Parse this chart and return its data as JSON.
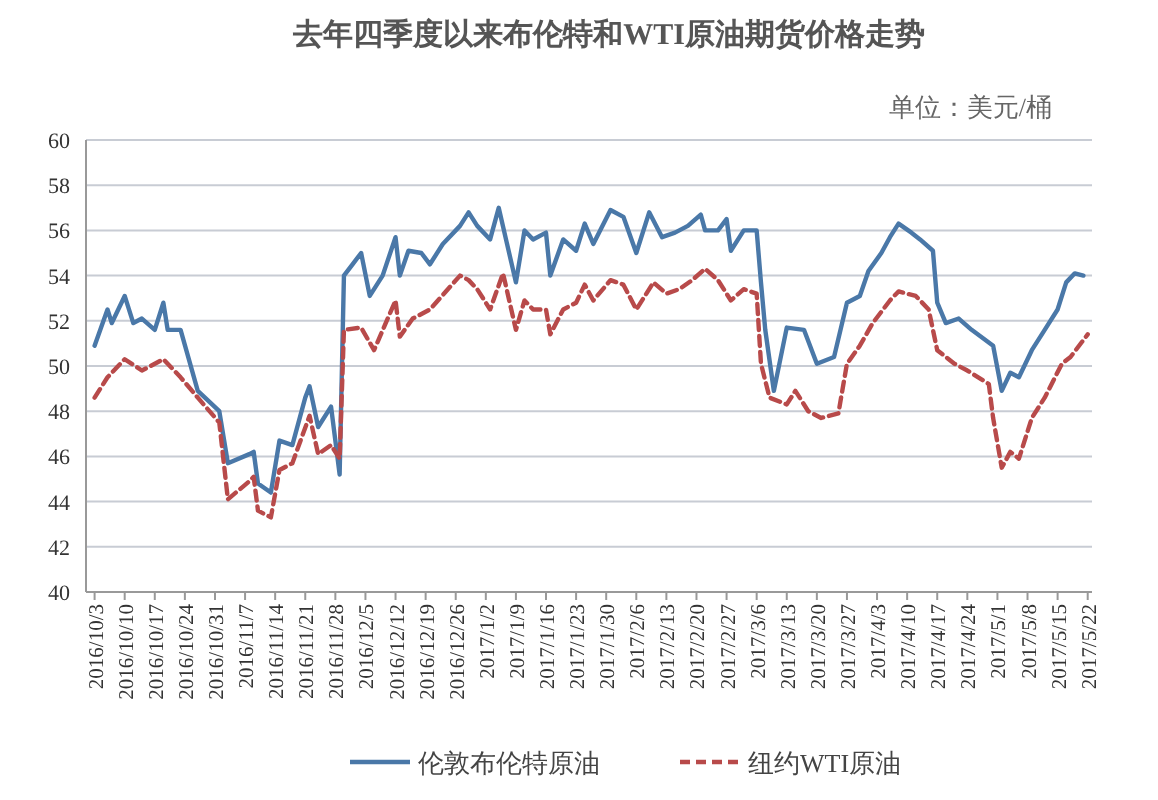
{
  "chart_data": {
    "type": "line",
    "title": "去年四季度以来布伦特和WTI原油期货价格走势",
    "annotations": [
      "单位：美元/桶"
    ],
    "xlim": [
      "2016-10-01",
      "2017-05-23"
    ],
    "ylim": [
      40,
      60
    ],
    "yticks": [
      40,
      42,
      44,
      46,
      48,
      50,
      52,
      54,
      56,
      58,
      60
    ],
    "xticks": [
      {
        "value": "2016-10-03",
        "label": "2016/10/3"
      },
      {
        "value": "2016-10-10",
        "label": "2016/10/10"
      },
      {
        "value": "2016-10-17",
        "label": "2016/10/17"
      },
      {
        "value": "2016-10-24",
        "label": "2016/10/24"
      },
      {
        "value": "2016-10-31",
        "label": "2016/10/31"
      },
      {
        "value": "2016-11-07",
        "label": "2016/11/7"
      },
      {
        "value": "2016-11-14",
        "label": "2016/11/14"
      },
      {
        "value": "2016-11-21",
        "label": "2016/11/21"
      },
      {
        "value": "2016-11-28",
        "label": "2016/11/28"
      },
      {
        "value": "2016-12-05",
        "label": "2016/12/5"
      },
      {
        "value": "2016-12-12",
        "label": "2016/12/12"
      },
      {
        "value": "2016-12-19",
        "label": "2016/12/19"
      },
      {
        "value": "2016-12-26",
        "label": "2016/12/26"
      },
      {
        "value": "2017-01-02",
        "label": "2017/1/2"
      },
      {
        "value": "2017-01-09",
        "label": "2017/1/9"
      },
      {
        "value": "2017-01-16",
        "label": "2017/1/16"
      },
      {
        "value": "2017-01-23",
        "label": "2017/1/23"
      },
      {
        "value": "2017-01-30",
        "label": "2017/1/30"
      },
      {
        "value": "2017-02-06",
        "label": "2017/2/6"
      },
      {
        "value": "2017-02-13",
        "label": "2017/2/13"
      },
      {
        "value": "2017-02-20",
        "label": "2017/2/20"
      },
      {
        "value": "2017-02-27",
        "label": "2017/2/27"
      },
      {
        "value": "2017-03-06",
        "label": "2017/3/6"
      },
      {
        "value": "2017-03-13",
        "label": "2017/3/13"
      },
      {
        "value": "2017-03-20",
        "label": "2017/3/20"
      },
      {
        "value": "2017-03-27",
        "label": "2017/3/27"
      },
      {
        "value": "2017-04-03",
        "label": "2017/4/3"
      },
      {
        "value": "2017-04-10",
        "label": "2017/4/10"
      },
      {
        "value": "2017-04-17",
        "label": "2017/4/17"
      },
      {
        "value": "2017-04-24",
        "label": "2017/4/24"
      },
      {
        "value": "2017-05-01",
        "label": "2017/5/1"
      },
      {
        "value": "2017-05-08",
        "label": "2017/5/8"
      },
      {
        "value": "2017-05-15",
        "label": "2017/5/15"
      },
      {
        "value": "2017-05-22",
        "label": "2017/5/22"
      }
    ],
    "grid": "y",
    "legend": "bottom",
    "marker": "none",
    "series": [
      {
        "name": "伦敦布伦特原油",
        "color": "#4a78a8",
        "line_style": "solid",
        "x": [
          "2016-10-03",
          "2016-10-06",
          "2016-10-07",
          "2016-10-10",
          "2016-10-12",
          "2016-10-14",
          "2016-10-17",
          "2016-10-19",
          "2016-10-20",
          "2016-10-23",
          "2016-10-27",
          "2016-11-01",
          "2016-11-03",
          "2016-11-08",
          "2016-11-09",
          "2016-11-10",
          "2016-11-13",
          "2016-11-15",
          "2016-11-18",
          "2016-11-21",
          "2016-11-22",
          "2016-11-24",
          "2016-11-27",
          "2016-11-29",
          "2016-11-30",
          "2016-12-02",
          "2016-12-04",
          "2016-12-06",
          "2016-12-09",
          "2016-12-12",
          "2016-12-13",
          "2016-12-15",
          "2016-12-18",
          "2016-12-20",
          "2016-12-23",
          "2016-12-27",
          "2016-12-29",
          "2016-12-31",
          "2017-01-03",
          "2017-01-05",
          "2017-01-09",
          "2017-01-11",
          "2017-01-13",
          "2017-01-16",
          "2017-01-17",
          "2017-01-20",
          "2017-01-23",
          "2017-01-25",
          "2017-01-27",
          "2017-01-31",
          "2017-02-03",
          "2017-02-06",
          "2017-02-09",
          "2017-02-12",
          "2017-02-15",
          "2017-02-18",
          "2017-02-21",
          "2017-02-22",
          "2017-02-25",
          "2017-02-27",
          "2017-02-28",
          "2017-03-03",
          "2017-03-06",
          "2017-03-07",
          "2017-03-08",
          "2017-03-10",
          "2017-03-13",
          "2017-03-17",
          "2017-03-20",
          "2017-03-24",
          "2017-03-27",
          "2017-03-30",
          "2017-04-01",
          "2017-04-04",
          "2017-04-06",
          "2017-04-08",
          "2017-04-11",
          "2017-04-13",
          "2017-04-16",
          "2017-04-17",
          "2017-04-19",
          "2017-04-22",
          "2017-04-25",
          "2017-04-30",
          "2017-05-02",
          "2017-05-04",
          "2017-05-06",
          "2017-05-09",
          "2017-05-12",
          "2017-05-15",
          "2017-05-17",
          "2017-05-19",
          "2017-05-21"
        ],
        "values": [
          50.9,
          52.5,
          51.9,
          53.1,
          51.9,
          52.1,
          51.6,
          52.8,
          51.6,
          51.6,
          48.9,
          48.0,
          45.7,
          46.1,
          46.2,
          44.8,
          44.4,
          46.7,
          46.5,
          48.6,
          49.1,
          47.3,
          48.2,
          45.2,
          54.0,
          54.5,
          55.0,
          53.1,
          54.0,
          55.7,
          54.0,
          55.1,
          55.0,
          54.5,
          55.4,
          56.2,
          56.8,
          56.2,
          55.6,
          57.0,
          53.7,
          56.0,
          55.6,
          55.9,
          54.0,
          55.6,
          55.1,
          56.3,
          55.4,
          56.9,
          56.6,
          55.0,
          56.8,
          55.7,
          55.9,
          56.2,
          56.7,
          56.0,
          56.0,
          56.5,
          55.1,
          56.0,
          56.0,
          53.7,
          51.6,
          48.9,
          51.7,
          51.6,
          50.1,
          50.4,
          52.8,
          53.1,
          54.2,
          55.0,
          55.7,
          56.3,
          55.9,
          55.6,
          55.1,
          52.8,
          51.9,
          52.1,
          51.6,
          50.9,
          48.9,
          49.7,
          49.5,
          50.7,
          51.6,
          52.5,
          53.7,
          54.1,
          54.0
        ]
      },
      {
        "name": "纽约WTI原油",
        "color": "#b84a4a",
        "line_style": "dashed",
        "x": [
          "2016-10-03",
          "2016-10-06",
          "2016-10-10",
          "2016-10-14",
          "2016-10-19",
          "2016-10-23",
          "2016-10-27",
          "2016-11-01",
          "2016-11-03",
          "2016-11-08",
          "2016-11-09",
          "2016-11-10",
          "2016-11-13",
          "2016-11-15",
          "2016-11-18",
          "2016-11-22",
          "2016-11-24",
          "2016-11-27",
          "2016-11-29",
          "2016-11-30",
          "2016-12-04",
          "2016-12-07",
          "2016-12-12",
          "2016-12-13",
          "2016-12-16",
          "2016-12-20",
          "2016-12-27",
          "2016-12-29",
          "2016-12-31",
          "2017-01-03",
          "2017-01-06",
          "2017-01-09",
          "2017-01-11",
          "2017-01-13",
          "2017-01-16",
          "2017-01-17",
          "2017-01-20",
          "2017-01-23",
          "2017-01-25",
          "2017-01-27",
          "2017-01-31",
          "2017-02-03",
          "2017-02-06",
          "2017-02-10",
          "2017-02-13",
          "2017-02-16",
          "2017-02-19",
          "2017-02-22",
          "2017-02-25",
          "2017-02-28",
          "2017-03-03",
          "2017-03-06",
          "2017-03-07",
          "2017-03-09",
          "2017-03-13",
          "2017-03-15",
          "2017-03-18",
          "2017-03-21",
          "2017-03-25",
          "2017-03-27",
          "2017-03-30",
          "2017-04-02",
          "2017-04-06",
          "2017-04-08",
          "2017-04-12",
          "2017-04-15",
          "2017-04-17",
          "2017-04-21",
          "2017-04-24",
          "2017-04-29",
          "2017-04-30",
          "2017-05-02",
          "2017-05-04",
          "2017-05-06",
          "2017-05-09",
          "2017-05-12",
          "2017-05-16",
          "2017-05-18",
          "2017-05-22"
        ],
        "values": [
          48.6,
          49.5,
          50.3,
          49.8,
          50.3,
          49.5,
          48.6,
          47.5,
          44.1,
          44.9,
          45.1,
          43.6,
          43.3,
          45.4,
          45.7,
          47.8,
          46.1,
          46.5,
          45.9,
          51.6,
          51.7,
          50.7,
          52.9,
          51.3,
          52.1,
          52.5,
          54.0,
          53.8,
          53.4,
          52.5,
          54.1,
          51.6,
          52.9,
          52.5,
          52.5,
          51.4,
          52.5,
          52.8,
          53.6,
          52.9,
          53.8,
          53.6,
          52.5,
          53.7,
          53.2,
          53.4,
          53.8,
          54.3,
          53.8,
          52.9,
          53.4,
          53.2,
          50.1,
          48.6,
          48.3,
          48.9,
          48.0,
          47.7,
          47.9,
          50.1,
          50.9,
          51.9,
          52.9,
          53.3,
          53.1,
          52.5,
          50.7,
          50.1,
          49.8,
          49.2,
          47.7,
          45.5,
          46.2,
          45.9,
          47.7,
          48.6,
          50.1,
          50.4,
          51.4
        ]
      }
    ]
  }
}
